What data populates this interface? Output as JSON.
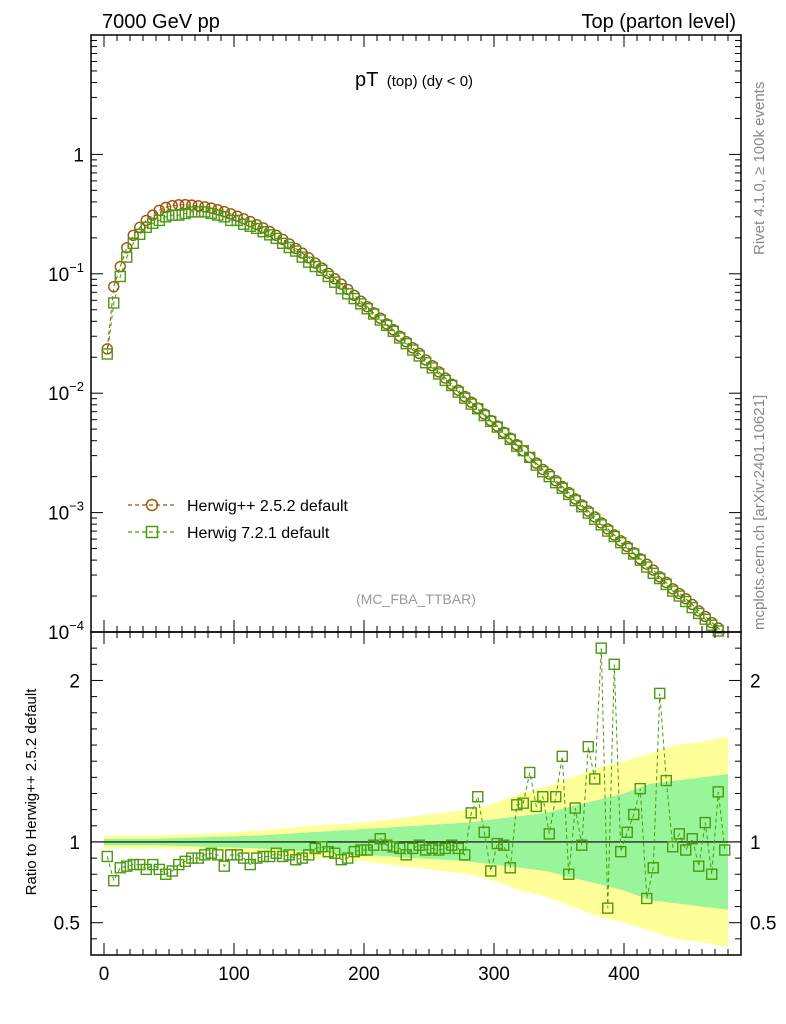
{
  "header": {
    "left": "7000 GeV pp",
    "right": "Top (parton level)"
  },
  "side_labels": {
    "rivet": "Rivet 4.1.0, ≥ 100k events",
    "mcplots": "mcplots.cern.ch [arXiv:2401.10621]"
  },
  "colors": {
    "herwigpp": "#a0520a",
    "herwig7": "#4a9a10",
    "band_inner": "#99f599",
    "band_outer": "#ffff99"
  },
  "chart_data": [
    {
      "panel": "main",
      "type": "scatter",
      "title_main": "pT",
      "title_sub": "(top) (dy < 0)",
      "watermark": "(MC_FBA_TTBAR)",
      "xlim": [
        -10,
        490
      ],
      "ylim": [
        0.0001,
        10
      ],
      "yscale": "log",
      "y_tick_labels": [
        {
          "value": 1,
          "base": "1",
          "exp": ""
        },
        {
          "value": 0.1,
          "base": "10",
          "exp": "−1"
        },
        {
          "value": 0.01,
          "base": "10",
          "exp": "−2"
        },
        {
          "value": 0.001,
          "base": "10",
          "exp": "−3"
        },
        {
          "value": 0.0001,
          "base": "10",
          "exp": "−4"
        }
      ],
      "legend": [
        {
          "label": "Herwig++ 2.5.2 default",
          "marker": "circle"
        },
        {
          "label": "Herwig 7.2.1 default",
          "marker": "square"
        }
      ],
      "series": [
        {
          "name": "Herwig++ 2.5.2 default",
          "x": [
            2.5,
            7.5,
            12.5,
            17.5,
            22.5,
            27.5,
            32.5,
            37.5,
            42.5,
            47.5,
            52.5,
            57.5,
            62.5,
            67.5,
            72.5,
            77.5,
            82.5,
            87.5,
            92.5,
            97.5,
            102.5,
            107.5,
            112.5,
            117.5,
            122.5,
            127.5,
            132.5,
            137.5,
            142.5,
            147.5,
            152.5,
            157.5,
            162.5,
            167.5,
            172.5,
            177.5,
            182.5,
            187.5,
            192.5,
            197.5,
            202.5,
            207.5,
            212.5,
            217.5,
            222.5,
            227.5,
            232.5,
            237.5,
            242.5,
            247.5,
            252.5,
            257.5,
            262.5,
            267.5,
            272.5,
            277.5,
            282.5,
            287.5,
            292.5,
            297.5,
            302.5,
            307.5,
            312.5,
            317.5,
            322.5,
            327.5,
            332.5,
            337.5,
            342.5,
            347.5,
            352.5,
            357.5,
            362.5,
            367.5,
            372.5,
            377.5,
            382.5,
            387.5,
            392.5,
            397.5,
            402.5,
            407.5,
            412.5,
            417.5,
            422.5,
            427.5,
            432.5,
            437.5,
            442.5,
            447.5,
            452.5,
            457.5,
            462.5,
            467.5,
            472.5,
            477.5
          ],
          "y": [
            0.0235,
            0.078,
            0.115,
            0.165,
            0.21,
            0.245,
            0.28,
            0.31,
            0.34,
            0.36,
            0.372,
            0.378,
            0.379,
            0.376,
            0.371,
            0.364,
            0.355,
            0.344,
            0.332,
            0.318,
            0.304,
            0.289,
            0.274,
            0.258,
            0.242,
            0.226,
            0.21,
            0.194,
            0.178,
            0.163,
            0.149,
            0.136,
            0.123,
            0.112,
            0.101,
            0.091,
            0.082,
            0.074,
            0.066,
            0.059,
            0.053,
            0.047,
            0.0425,
            0.038,
            0.034,
            0.03,
            0.027,
            0.024,
            0.0215,
            0.019,
            0.017,
            0.0151,
            0.0134,
            0.0119,
            0.0106,
            0.0094,
            0.0084,
            0.0075,
            0.0067,
            0.0059,
            0.0053,
            0.0047,
            0.0042,
            0.0037,
            0.0033,
            0.0029,
            0.0026,
            0.0023,
            0.0021,
            0.00185,
            0.00165,
            0.00147,
            0.0013,
            0.00116,
            0.00103,
            0.00092,
            0.00082,
            0.00073,
            0.00065,
            0.00058,
            0.00052,
            0.00046,
            0.00041,
            0.00037,
            0.00033,
            0.00029,
            0.00026,
            0.00023,
            0.00021,
            0.00019,
            0.00017,
            0.00015,
            0.000135,
            0.00012,
            0.000108,
            9.7e-05
          ]
        },
        {
          "name": "Herwig 7.2.1 default",
          "x": [
            2.5,
            7.5,
            12.5,
            17.5,
            22.5,
            27.5,
            32.5,
            37.5,
            42.5,
            47.5,
            52.5,
            57.5,
            62.5,
            67.5,
            72.5,
            77.5,
            82.5,
            87.5,
            92.5,
            97.5,
            102.5,
            107.5,
            112.5,
            117.5,
            122.5,
            127.5,
            132.5,
            137.5,
            142.5,
            147.5,
            152.5,
            157.5,
            162.5,
            167.5,
            172.5,
            177.5,
            182.5,
            187.5,
            192.5,
            197.5,
            202.5,
            207.5,
            212.5,
            217.5,
            222.5,
            227.5,
            232.5,
            237.5,
            242.5,
            247.5,
            252.5,
            257.5,
            262.5,
            267.5,
            272.5,
            277.5,
            282.5,
            287.5,
            292.5,
            297.5,
            302.5,
            307.5,
            312.5,
            317.5,
            322.5,
            327.5,
            332.5,
            337.5,
            342.5,
            347.5,
            352.5,
            357.5,
            362.5,
            367.5,
            372.5,
            377.5,
            382.5,
            387.5,
            392.5,
            397.5,
            402.5,
            407.5,
            412.5,
            417.5,
            422.5,
            427.5,
            432.5,
            437.5,
            442.5,
            447.5,
            452.5,
            457.5,
            462.5,
            467.5,
            472.5,
            477.5
          ],
          "y": [
            0.0213,
            0.057,
            0.095,
            0.138,
            0.18,
            0.214,
            0.245,
            0.265,
            0.28,
            0.3,
            0.31,
            0.31,
            0.32,
            0.33,
            0.33,
            0.33,
            0.32,
            0.31,
            0.3,
            0.28,
            0.28,
            0.26,
            0.25,
            0.24,
            0.225,
            0.212,
            0.198,
            0.18,
            0.166,
            0.155,
            0.138,
            0.125,
            0.115,
            0.107,
            0.095,
            0.085,
            0.075,
            0.068,
            0.062,
            0.056,
            0.051,
            0.046,
            0.041,
            0.037,
            0.033,
            0.029,
            0.026,
            0.023,
            0.0205,
            0.018,
            0.0163,
            0.0145,
            0.0128,
            0.0116,
            0.0102,
            0.0091,
            0.0081,
            0.0074,
            0.0065,
            0.0058,
            0.0052,
            0.0046,
            0.0041,
            0.0036,
            0.0033,
            0.0029,
            0.0025,
            0.0022,
            0.002,
            0.00178,
            0.0016,
            0.00142,
            0.00126,
            0.00112,
            0.00099,
            0.00088,
            0.00079,
            0.0007,
            0.00063,
            0.00056,
            0.0005,
            0.00045,
            0.0004,
            0.00035,
            0.00031,
            0.00028,
            0.00025,
            0.00022,
            0.0002,
            0.00018,
            0.00016,
            0.000143,
            0.000128,
            0.000114,
            0.000102,
            9.1e-05
          ]
        }
      ]
    },
    {
      "panel": "ratio",
      "type": "scatter",
      "ylabel": "Ratio to Herwig++ 2.5.2 default",
      "xlim": [
        -10,
        490
      ],
      "ylim": [
        0.3,
        2.3
      ],
      "x_ticks": [
        0,
        100,
        200,
        300,
        400
      ],
      "y_ticks": [
        0.5,
        1,
        2
      ],
      "reference_line": 1,
      "band": {
        "x": [
          0,
          40,
          80,
          120,
          160,
          200,
          240,
          280,
          300,
          320,
          340,
          360,
          380,
          400,
          420,
          440,
          460,
          480
        ],
        "inner_half_width": [
          0.02,
          0.02,
          0.03,
          0.04,
          0.06,
          0.08,
          0.1,
          0.12,
          0.14,
          0.16,
          0.18,
          0.22,
          0.26,
          0.3,
          0.36,
          0.38,
          0.4,
          0.42
        ],
        "outer_half_width": [
          0.04,
          0.04,
          0.05,
          0.07,
          0.1,
          0.12,
          0.16,
          0.2,
          0.24,
          0.3,
          0.34,
          0.4,
          0.46,
          0.5,
          0.55,
          0.6,
          0.62,
          0.65
        ]
      },
      "series": [
        {
          "name": "Herwig 7.2.1 default",
          "x": [
            2.5,
            7.5,
            12.5,
            17.5,
            22.5,
            27.5,
            32.5,
            37.5,
            42.5,
            47.5,
            52.5,
            57.5,
            62.5,
            67.5,
            72.5,
            77.5,
            82.5,
            87.5,
            92.5,
            97.5,
            102.5,
            107.5,
            112.5,
            117.5,
            122.5,
            127.5,
            132.5,
            137.5,
            142.5,
            147.5,
            152.5,
            157.5,
            162.5,
            167.5,
            172.5,
            177.5,
            182.5,
            187.5,
            192.5,
            197.5,
            202.5,
            207.5,
            212.5,
            217.5,
            222.5,
            227.5,
            232.5,
            237.5,
            242.5,
            247.5,
            252.5,
            257.5,
            262.5,
            267.5,
            272.5,
            277.5,
            282.5,
            287.5,
            292.5,
            297.5,
            302.5,
            307.5,
            312.5,
            317.5,
            322.5,
            327.5,
            332.5,
            337.5,
            342.5,
            347.5,
            352.5,
            357.5,
            362.5,
            367.5,
            372.5,
            377.5,
            382.5,
            387.5,
            392.5,
            397.5,
            402.5,
            407.5,
            412.5,
            417.5,
            422.5,
            427.5,
            432.5,
            437.5,
            442.5,
            447.5,
            452.5,
            457.5,
            462.5,
            467.5,
            472.5,
            477.5
          ],
          "y": [
            0.91,
            0.76,
            0.84,
            0.85,
            0.86,
            0.86,
            0.83,
            0.86,
            0.83,
            0.8,
            0.82,
            0.86,
            0.88,
            0.9,
            0.9,
            0.92,
            0.93,
            0.92,
            0.85,
            0.92,
            0.92,
            0.9,
            0.86,
            0.9,
            0.91,
            0.91,
            0.93,
            0.91,
            0.92,
            0.89,
            0.9,
            0.92,
            0.96,
            0.97,
            0.94,
            0.93,
            0.89,
            0.9,
            0.94,
            0.95,
            0.95,
            0.98,
            1.02,
            0.98,
            0.97,
            0.96,
            0.92,
            0.96,
            0.98,
            0.95,
            0.96,
            0.95,
            0.96,
            0.98,
            0.96,
            0.92,
            1.18,
            1.28,
            1.06,
            0.82,
            0.99,
            0.98,
            0.84,
            1.23,
            1.24,
            1.43,
            1.22,
            1.28,
            1.05,
            1.28,
            1.53,
            0.8,
            1.21,
            0.98,
            1.59,
            1.39,
            2.2,
            0.59,
            2.1,
            0.94,
            1.06,
            1.17,
            1.33,
            0.65,
            0.84,
            1.92,
            1.38,
            0.97,
            1.05,
            0.95,
            1.02,
            0.85,
            1.12,
            0.8,
            1.31,
            0.95
          ]
        }
      ]
    }
  ]
}
